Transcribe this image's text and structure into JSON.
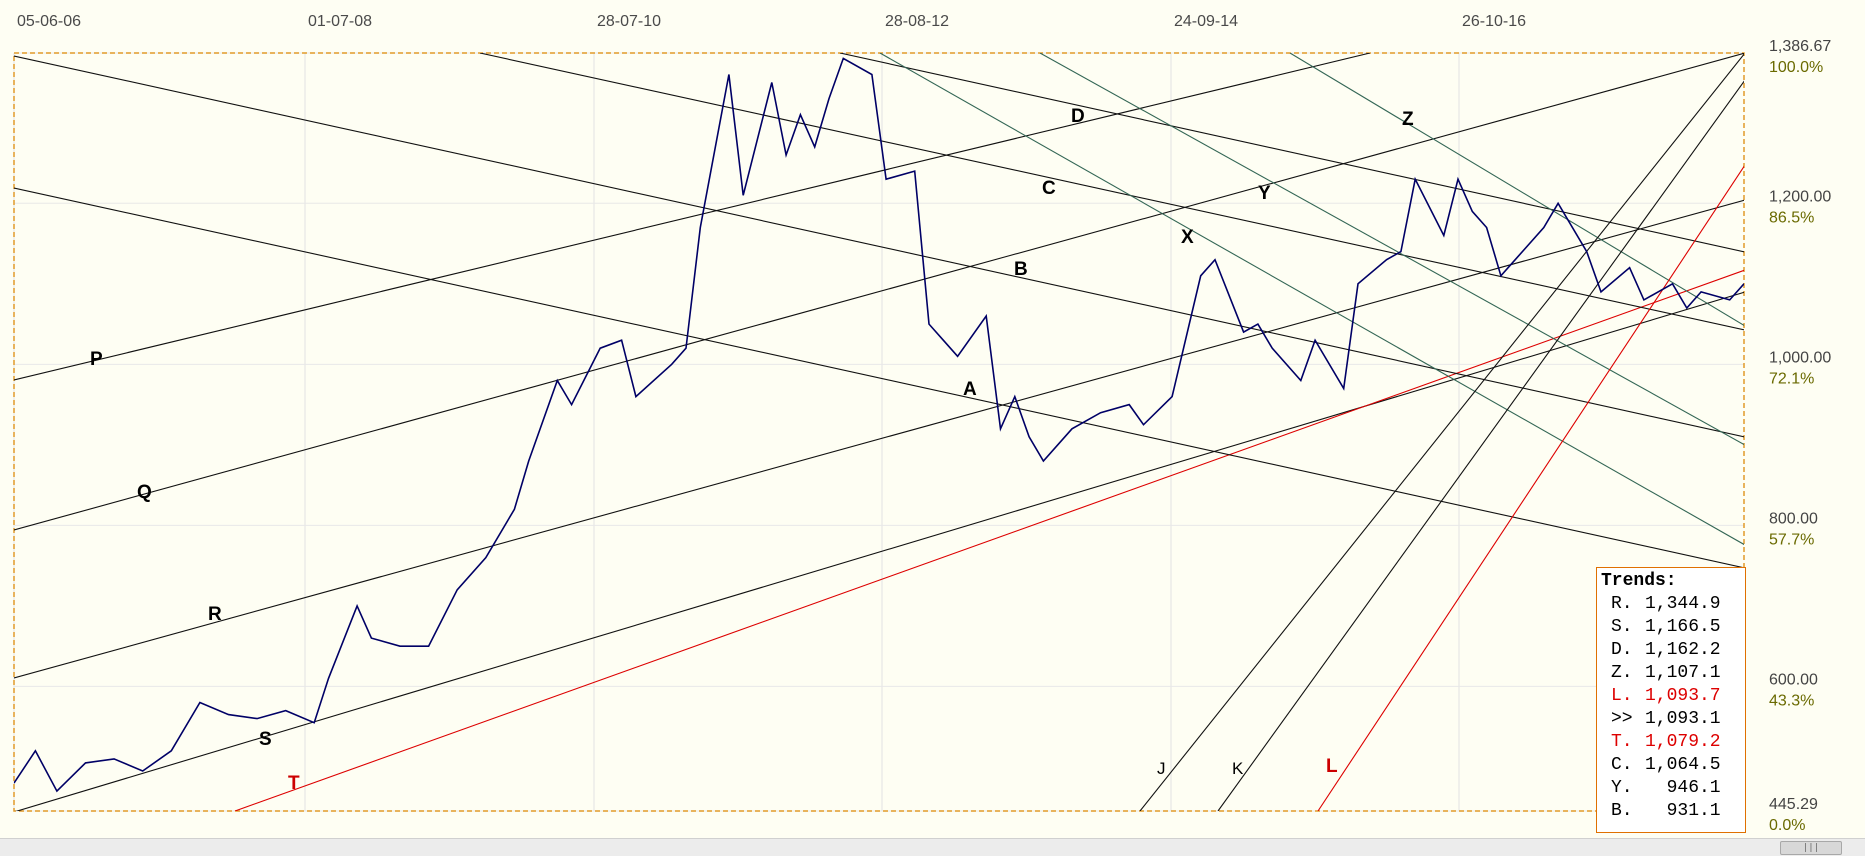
{
  "chart_data": {
    "type": "line",
    "title": "",
    "xlabel": "",
    "ylabel": "",
    "x_tick_labels": [
      "05-06-06",
      "01-07-08",
      "28-07-10",
      "28-08-12",
      "24-09-14",
      "26-10-16"
    ],
    "y_ticks": [
      {
        "value": 1386.67,
        "label": "1,386.67",
        "pct": "100.0%"
      },
      {
        "value": 1200.0,
        "label": "1,200.00",
        "pct": "86.5%"
      },
      {
        "value": 1000.0,
        "label": "1,000.00",
        "pct": "72.1%"
      },
      {
        "value": 800.0,
        "label": "800.00",
        "pct": "57.7%"
      },
      {
        "value": 600.0,
        "label": "600.00",
        "pct": "43.3%"
      },
      {
        "value": 445.29,
        "label": "445.29",
        "pct": "0.0%"
      }
    ],
    "ylim": [
      445.29,
      1386.67
    ],
    "xlim": [
      2006.2,
      2018.3
    ],
    "grid": true,
    "series": [
      {
        "color": "#000066",
        "x": [
          2006.2,
          2006.35,
          2006.5,
          2006.7,
          2006.9,
          2007.1,
          2007.3,
          2007.5,
          2007.7,
          2007.9,
          2008.1,
          2008.3,
          2008.4,
          2008.6,
          2008.7,
          2008.9,
          2009.1,
          2009.3,
          2009.5,
          2009.7,
          2009.8,
          2010.0,
          2010.1,
          2010.3,
          2010.45,
          2010.55,
          2010.8,
          2010.9,
          2011.0,
          2011.2,
          2011.3,
          2011.5,
          2011.6,
          2011.7,
          2011.8,
          2011.9,
          2012.0,
          2012.2,
          2012.3,
          2012.5,
          2012.6,
          2012.7,
          2012.8,
          2013.0,
          2013.1,
          2013.2,
          2013.3,
          2013.4,
          2013.6,
          2013.8,
          2014.0,
          2014.1,
          2014.3,
          2014.5,
          2014.6,
          2014.8,
          2014.9,
          2015.0,
          2015.2,
          2015.3,
          2015.5,
          2015.6,
          2015.8,
          2015.9,
          2016.0,
          2016.2,
          2016.3,
          2016.4,
          2016.5,
          2016.6,
          2016.7,
          2016.9,
          2017.0,
          2017.2,
          2017.3,
          2017.5,
          2017.6,
          2017.8,
          2017.9,
          2018.0,
          2018.2,
          2018.3
        ],
        "values": [
          480,
          520,
          470,
          505,
          510,
          495,
          520,
          580,
          565,
          560,
          570,
          555,
          610,
          700,
          660,
          650,
          650,
          720,
          760,
          820,
          880,
          980,
          950,
          1020,
          1030,
          960,
          1000,
          1020,
          1170,
          1360,
          1210,
          1350,
          1260,
          1310,
          1270,
          1330,
          1380,
          1360,
          1230,
          1240,
          1050,
          1030,
          1010,
          1060,
          920,
          960,
          910,
          880,
          920,
          940,
          950,
          925,
          960,
          1110,
          1130,
          1040,
          1050,
          1020,
          980,
          1030,
          970,
          1100,
          1130,
          1140,
          1230,
          1160,
          1230,
          1190,
          1170,
          1110,
          1130,
          1170,
          1200,
          1140,
          1090,
          1120,
          1080,
          1100,
          1070,
          1090,
          1080,
          1100
        ]
      }
    ],
    "line_labels": [
      {
        "text": "P",
        "color": "#000000"
      },
      {
        "text": "Q",
        "color": "#000000"
      },
      {
        "text": "R",
        "color": "#000000"
      },
      {
        "text": "S",
        "color": "#000000"
      },
      {
        "text": "T",
        "color": "#cc0000"
      },
      {
        "text": "A",
        "color": "#000000"
      },
      {
        "text": "B",
        "color": "#000000"
      },
      {
        "text": "C",
        "color": "#000000"
      },
      {
        "text": "D",
        "color": "#000000"
      },
      {
        "text": "X",
        "color": "#000000"
      },
      {
        "text": "Y",
        "color": "#000000"
      },
      {
        "text": "Z",
        "color": "#000000"
      },
      {
        "text": "J",
        "color": "#000000"
      },
      {
        "text": "K",
        "color": "#000000"
      },
      {
        "text": "L",
        "color": "#cc0000"
      }
    ]
  },
  "trends": {
    "title": "Trends:",
    "rows": [
      {
        "label": "R.",
        "value": "1,344.9",
        "color": "#000000"
      },
      {
        "label": "S.",
        "value": "1,166.5",
        "color": "#000000"
      },
      {
        "label": "D.",
        "value": "1,162.2",
        "color": "#000000"
      },
      {
        "label": "Z.",
        "value": "1,107.1",
        "color": "#000000"
      },
      {
        "label": "L.",
        "value": "1,093.7",
        "color": "#dd0000"
      },
      {
        "label": ">>",
        "value": "1,093.1",
        "color": "#000000"
      },
      {
        "label": "T.",
        "value": "1,079.2",
        "color": "#dd0000"
      },
      {
        "label": "C.",
        "value": "1,064.5",
        "color": "#000000"
      },
      {
        "label": "Y.",
        "value": "946.1",
        "color": "#000000"
      },
      {
        "label": "B.",
        "value": "931.1",
        "color": "#000000"
      }
    ]
  },
  "colors": {
    "background": "#fefef3",
    "frame": "#e09a2a",
    "price": "#000066",
    "trend_black": "#111111",
    "trend_green": "#336655",
    "trend_red": "#dd0000"
  },
  "icons": {
    "scrollbar_grip": "grip-icon"
  },
  "scrollbar_grip_glyph": "|||"
}
